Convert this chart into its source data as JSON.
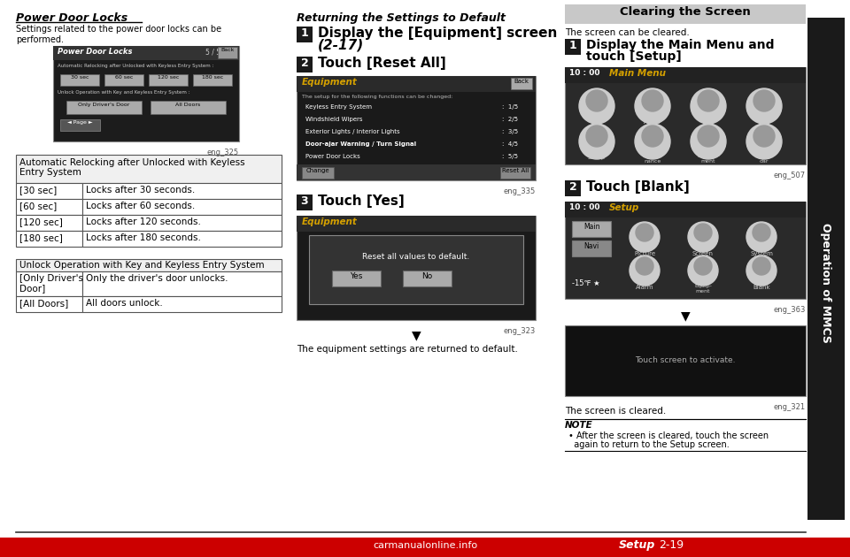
{
  "bg_color": "#ffffff",
  "page_width": 9.6,
  "page_height": 6.3,
  "left_section": {
    "title": "Power Door Locks",
    "body_line1": "Settings related to the power door locks can be",
    "body_line2": "performed.",
    "img_label": "eng_325",
    "table1_header1": "Automatic Relocking after Unlocked with Keyless",
    "table1_header2": "Entry System",
    "table1_rows": [
      [
        "[30 sec]",
        "Locks after 30 seconds."
      ],
      [
        "[60 sec]",
        "Locks after 60 seconds."
      ],
      [
        "[120 sec]",
        "Locks after 120 seconds."
      ],
      [
        "[180 sec]",
        "Locks after 180 seconds."
      ]
    ],
    "table2_header": "Unlock Operation with Key and Keyless Entry System",
    "table2_row1_c1_line1": "[Only Driver's",
    "table2_row1_c1_line2": "Door]",
    "table2_row1_c2": "Only the driver's door unlocks.",
    "table2_row2_c1": "[All Doors]",
    "table2_row2_c2": "All doors unlock."
  },
  "middle_section": {
    "title": "Returning the Settings to Default",
    "step1_num": "1",
    "step1_line1": "Display the [Equipment] screen",
    "step1_line2": "(2-17)",
    "step2_num": "2",
    "step2_text": "Touch [Reset All]",
    "img2_label": "eng_335",
    "step3_num": "3",
    "step3_text": "Touch [Yes]",
    "img3_label": "eng_323",
    "result_text": "The equipment settings are returned to default."
  },
  "right_section": {
    "header": "Clearing the Screen",
    "header_bg": "#c8c8c8",
    "intro": "The screen can be cleared.",
    "step1_num": "1",
    "step1_line1": "Display the Main Menu and",
    "step1_line2": "touch [Setup]",
    "img1_label": "eng_507",
    "step2_num": "2",
    "step2_text": "Touch [Blank]",
    "img2_label": "eng_363",
    "img3_label": "eng_321",
    "result_text": "The screen is cleared.",
    "note_title": "NOTE",
    "note_line1": "• After the screen is cleared, touch the screen",
    "note_line2": "  again to return to the Setup screen.",
    "sidebar_text": "Operation of MMCS",
    "sidebar_bg": "#1a1a1a"
  },
  "footer": {
    "setup_text": "Setup",
    "page_text": "2-19",
    "footer_bg": "#cc0000",
    "watermark": "carmanualonline.info"
  }
}
